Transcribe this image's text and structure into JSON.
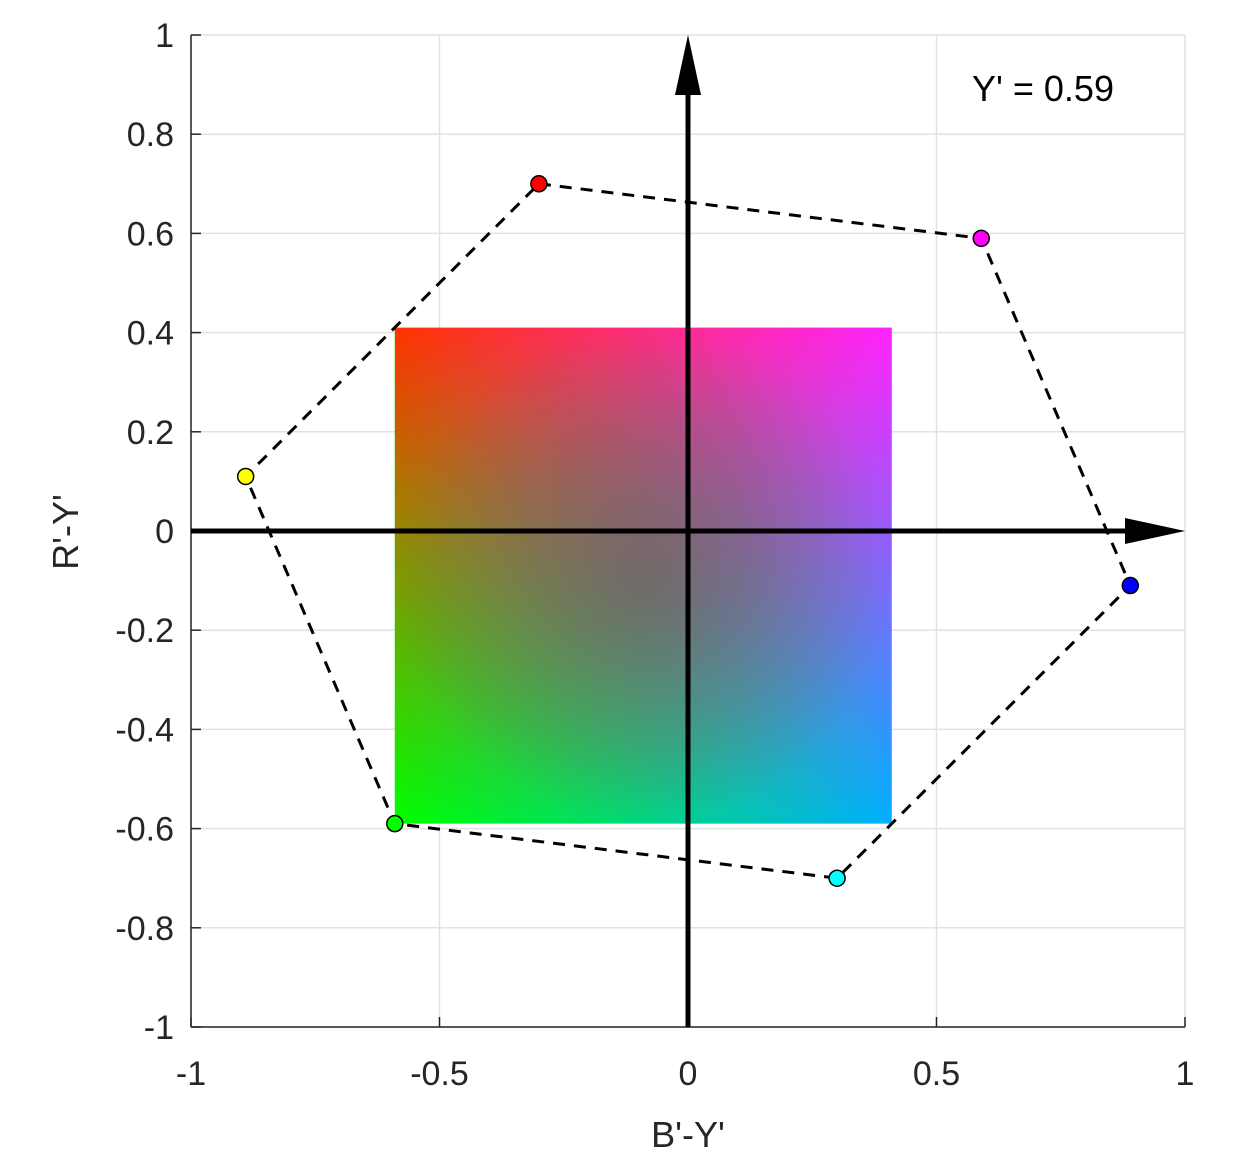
{
  "chart_data": {
    "type": "scatter",
    "xlabel": "B'-Y'",
    "ylabel": "R'-Y'",
    "xlim": [
      -1,
      1
    ],
    "ylim": [
      -1,
      1
    ],
    "grid": true,
    "x_ticks": [
      -1,
      -0.5,
      0,
      0.5,
      1
    ],
    "x_tick_labels": [
      "-1",
      "-0.5",
      "0",
      "0.5",
      "1"
    ],
    "y_ticks": [
      1,
      0.8,
      0.6,
      0.4,
      0.2,
      0,
      -0.2,
      -0.4,
      -0.6,
      -0.8,
      -1
    ],
    "y_tick_labels": [
      "1",
      "0.8",
      "0.6",
      "0.4",
      "0.2",
      "0",
      "-0.2",
      "-0.4",
      "-0.6",
      "-0.8",
      "-1"
    ],
    "annotation": "Y' = 0.59",
    "points": [
      {
        "x": -0.3,
        "y": 0.7,
        "color": "#ff0000",
        "name": "red-point"
      },
      {
        "x": 0.59,
        "y": 0.59,
        "color": "#ff00ff",
        "name": "magenta-point"
      },
      {
        "x": 0.89,
        "y": -0.11,
        "color": "#0000ff",
        "name": "blue-point"
      },
      {
        "x": 0.3,
        "y": -0.7,
        "color": "#00ffff",
        "name": "cyan-point"
      },
      {
        "x": -0.59,
        "y": -0.59,
        "color": "#00ff00",
        "name": "green-point"
      },
      {
        "x": -0.89,
        "y": 0.11,
        "color": "#ffff00",
        "name": "yellow-point"
      }
    ],
    "gamut_square": {
      "x_range": [
        -0.59,
        0.41
      ],
      "y_range": [
        -0.59,
        0.41
      ],
      "corner_colors": {
        "top_left": "#ff3300",
        "top_right": "#ff22ff",
        "bottom_left": "#00ff00",
        "bottom_right": "#00b0ff",
        "center": "#6b5c5c"
      }
    },
    "axes_arrows": true
  }
}
